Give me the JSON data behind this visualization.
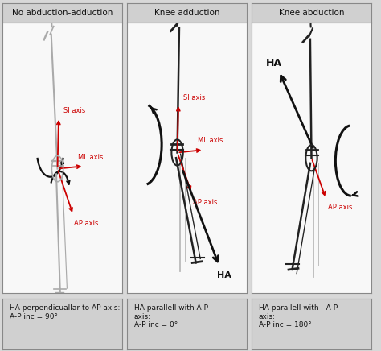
{
  "panel_titles": [
    "No abduction-adduction",
    "Knee adduction",
    "Knee abduction"
  ],
  "caption_texts": [
    "HA perpendicuallar to AP axis:\nA-P inc = 90°",
    "HA parallell with A-P\naxis:\nA-P inc = 0°",
    "HA parallell with - A-P\naxis:\nA-P inc = 180°"
  ],
  "outer_bg": "#d8d8d8",
  "panel_bg": "#f8f8f8",
  "title_bg": "#d0d0d0",
  "caption_bg": "#d0d0d0",
  "border_color": "#888888",
  "red": "#cc0000",
  "black": "#111111",
  "gray": "#aaaaaa",
  "dark": "#222222",
  "title_fs": 7.5,
  "label_fs": 6.0,
  "caption_fs": 6.5
}
